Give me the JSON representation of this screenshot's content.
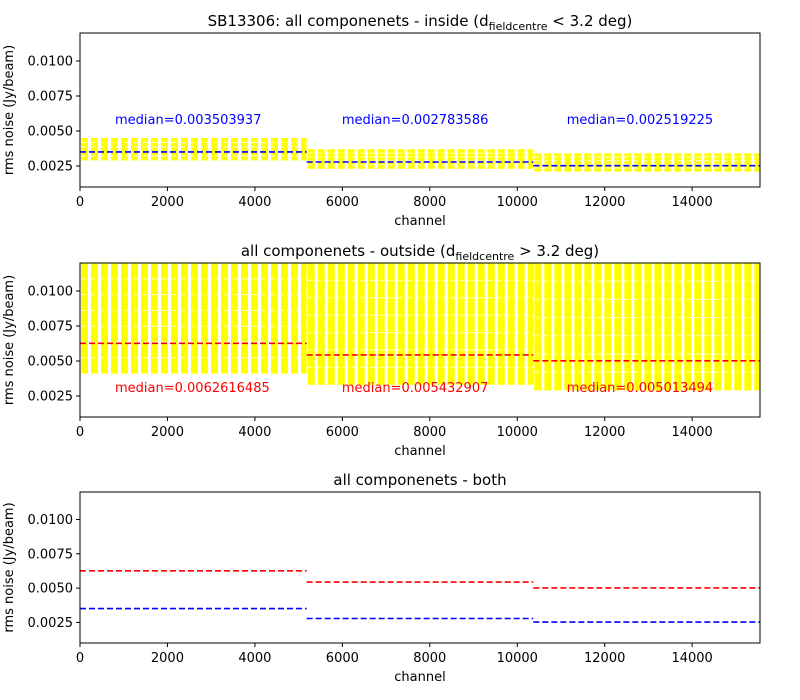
{
  "chart_data": [
    {
      "type": "line",
      "title": "SB13306: all componenets - inside (d",
      "title_sub": "fieldcentre",
      "title_tail": " < 3.2 deg)",
      "xlabel": "channel",
      "ylabel": "rms noise (Jy/beam)",
      "xlim": [
        0,
        15552
      ],
      "ylim": [
        0.001,
        0.012
      ],
      "xticks": [
        "0",
        "2000",
        "4000",
        "6000",
        "8000",
        "10000",
        "12000",
        "14000"
      ],
      "xtick_values": [
        0,
        2000,
        4000,
        6000,
        8000,
        10000,
        12000,
        14000
      ],
      "yticks": [
        "0.0025",
        "0.0050",
        "0.0075",
        "0.0100"
      ],
      "ytick_values": [
        0.0025,
        0.005,
        0.0075,
        0.01
      ],
      "median_color": "#0000ff",
      "band_color": "#ffff00",
      "segments": [
        {
          "x": [
            0,
            5184
          ],
          "median": 0.003503937,
          "band_low": 0.0029,
          "band_high": 0.0045,
          "label": "median=0.003503937"
        },
        {
          "x": [
            5184,
            10368
          ],
          "median": 0.002783586,
          "band_low": 0.0023,
          "band_high": 0.0037,
          "label": "median=0.002783586"
        },
        {
          "x": [
            10368,
            15552
          ],
          "median": 0.002519225,
          "band_low": 0.0021,
          "band_high": 0.0034,
          "label": "median=0.002519225"
        }
      ]
    },
    {
      "type": "line",
      "title": "all componenets - outside (d",
      "title_sub": "fieldcentre",
      "title_tail": " > 3.2 deg)",
      "xlabel": "channel",
      "ylabel": "rms noise (Jy/beam)",
      "xlim": [
        0,
        15552
      ],
      "ylim": [
        0.001,
        0.012
      ],
      "xticks": [
        "0",
        "2000",
        "4000",
        "6000",
        "8000",
        "10000",
        "12000",
        "14000"
      ],
      "xtick_values": [
        0,
        2000,
        4000,
        6000,
        8000,
        10000,
        12000,
        14000
      ],
      "yticks": [
        "0.0025",
        "0.0050",
        "0.0075",
        "0.0100"
      ],
      "ytick_values": [
        0.0025,
        0.005,
        0.0075,
        0.01
      ],
      "median_color": "#ff0000",
      "band_color": "#ffff00",
      "segments": [
        {
          "x": [
            0,
            5184
          ],
          "median": 0.0062616485,
          "band_low": 0.0041,
          "band_high": 0.012,
          "label": "median=0.0062616485"
        },
        {
          "x": [
            5184,
            10368
          ],
          "median": 0.005432907,
          "band_low": 0.0033,
          "band_high": 0.012,
          "label": "median=0.005432907"
        },
        {
          "x": [
            10368,
            15552
          ],
          "median": 0.005013494,
          "band_low": 0.0029,
          "band_high": 0.012,
          "label": "median=0.005013494"
        }
      ]
    },
    {
      "type": "line",
      "title": "all componenets - both",
      "title_sub": "",
      "title_tail": "",
      "xlabel": "channel",
      "ylabel": "rms noise (Jy/beam)",
      "xlim": [
        0,
        15552
      ],
      "ylim": [
        0.001,
        0.012
      ],
      "xticks": [
        "0",
        "2000",
        "4000",
        "6000",
        "8000",
        "10000",
        "12000",
        "14000"
      ],
      "xtick_values": [
        0,
        2000,
        4000,
        6000,
        8000,
        10000,
        12000,
        14000
      ],
      "yticks": [
        "0.0025",
        "0.0050",
        "0.0075",
        "0.0100"
      ],
      "ytick_values": [
        0.0025,
        0.005,
        0.0075,
        0.01
      ],
      "series": [
        {
          "color": "#ff0000",
          "segments": [
            {
              "x": [
                0,
                5184
              ],
              "median": 0.0062616485
            },
            {
              "x": [
                5184,
                10368
              ],
              "median": 0.005432907
            },
            {
              "x": [
                10368,
                15552
              ],
              "median": 0.005013494
            }
          ]
        },
        {
          "color": "#0000ff",
          "segments": [
            {
              "x": [
                0,
                5184
              ],
              "median": 0.003503937
            },
            {
              "x": [
                5184,
                10368
              ],
              "median": 0.002783586
            },
            {
              "x": [
                10368,
                15552
              ],
              "median": 0.002519225
            }
          ]
        }
      ]
    }
  ]
}
